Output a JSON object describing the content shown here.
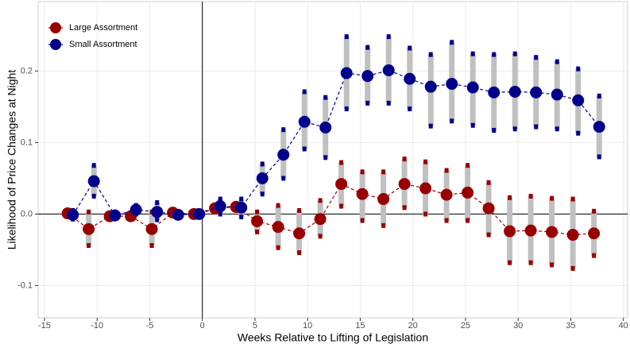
{
  "chart_data": {
    "type": "errorline",
    "xlabel": "Weeks Relative to Lifting of Legislation",
    "ylabel": "Likelihood of Price Changes at Night",
    "xlim": [
      -15.6,
      40.4
    ],
    "ylim": [
      -0.145,
      0.297
    ],
    "xticks": [
      -15,
      -10,
      -5,
      0,
      5,
      10,
      15,
      20,
      25,
      30,
      35,
      40
    ],
    "yticks": [
      -0.1,
      {
        "value": 0,
        "label": "0.0"
      },
      0.1,
      0.2
    ],
    "grid": true,
    "legend": "top-left",
    "errorbar_color": "#c0c0c0",
    "reference_lines": {
      "x": 0,
      "y": 0
    },
    "series": [
      {
        "name": "Large Assortment",
        "color": "#990000",
        "x": [
          -12.8,
          -10.8,
          -8.8,
          -6.8,
          -4.8,
          -2.8,
          -0.8,
          1.2,
          3.2,
          5.2,
          7.2,
          9.2,
          11.2,
          13.2,
          15.2,
          17.2,
          19.2,
          21.2,
          23.2,
          25.2,
          27.2,
          29.2,
          31.2,
          33.2,
          35.2,
          37.2
        ],
        "values": [
          0.001,
          -0.021,
          -0.003,
          -0.003,
          -0.021,
          0.002,
          0.0,
          0.008,
          0.01,
          -0.01,
          -0.018,
          -0.027,
          -0.007,
          0.042,
          0.028,
          0.021,
          0.042,
          0.036,
          0.027,
          0.03,
          0.008,
          -0.024,
          -0.023,
          -0.025,
          -0.029,
          -0.027
        ],
        "lower": [
          -0.003,
          -0.044,
          -0.006,
          -0.006,
          -0.044,
          -0.001,
          -0.002,
          0.003,
          0.005,
          -0.025,
          -0.047,
          -0.054,
          -0.031,
          0.011,
          -0.009,
          -0.016,
          0.009,
          0.0,
          -0.009,
          -0.009,
          -0.029,
          -0.068,
          -0.068,
          -0.071,
          -0.076,
          -0.058
        ],
        "upper": [
          0.005,
          0.003,
          0.0,
          0.0,
          0.003,
          0.005,
          0.002,
          0.013,
          0.015,
          0.003,
          0.012,
          0.005,
          0.019,
          0.072,
          0.059,
          0.059,
          0.077,
          0.073,
          0.061,
          0.068,
          0.044,
          0.023,
          0.025,
          0.022,
          0.021,
          0.004
        ]
      },
      {
        "name": "Small Assortment",
        "color": "#00008b",
        "x": [
          -12.3,
          -10.3,
          -8.3,
          -6.3,
          -4.3,
          -2.3,
          -0.3,
          1.7,
          3.7,
          5.7,
          7.7,
          9.7,
          11.7,
          13.7,
          15.7,
          17.7,
          19.7,
          21.7,
          23.7,
          25.7,
          27.7,
          29.7,
          31.7,
          33.7,
          35.7,
          37.7
        ],
        "values": [
          -0.001,
          0.046,
          -0.002,
          0.006,
          0.003,
          -0.001,
          0.0,
          0.011,
          0.009,
          0.05,
          0.083,
          0.129,
          0.121,
          0.197,
          0.193,
          0.201,
          0.189,
          0.178,
          0.182,
          0.177,
          0.17,
          0.171,
          0.17,
          0.167,
          0.159,
          0.122
        ],
        "lower": [
          -0.007,
          0.025,
          -0.006,
          0.0,
          -0.008,
          -0.004,
          -0.002,
          0.0,
          -0.004,
          0.028,
          0.05,
          0.091,
          0.079,
          0.147,
          0.155,
          0.155,
          0.147,
          0.123,
          0.13,
          0.124,
          0.117,
          0.119,
          0.122,
          0.119,
          0.113,
          0.08
        ],
        "upper": [
          0.005,
          0.068,
          0.003,
          0.012,
          0.016,
          0.003,
          0.002,
          0.021,
          0.021,
          0.07,
          0.118,
          0.171,
          0.163,
          0.248,
          0.233,
          0.248,
          0.232,
          0.223,
          0.24,
          0.224,
          0.223,
          0.224,
          0.219,
          0.213,
          0.203,
          0.165
        ]
      }
    ]
  }
}
